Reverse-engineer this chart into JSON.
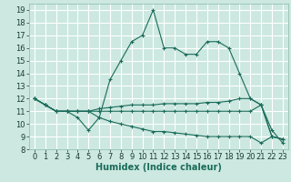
{
  "title": "",
  "xlabel": "Humidex (Indice chaleur)",
  "xlim": [
    -0.5,
    23.5
  ],
  "ylim": [
    8,
    19.5
  ],
  "xticks": [
    0,
    1,
    2,
    3,
    4,
    5,
    6,
    7,
    8,
    9,
    10,
    11,
    12,
    13,
    14,
    15,
    16,
    17,
    18,
    19,
    20,
    21,
    22,
    23
  ],
  "yticks": [
    8,
    9,
    10,
    11,
    12,
    13,
    14,
    15,
    16,
    17,
    18,
    19
  ],
  "bg_color": "#cce8e0",
  "grid_color": "#ffffff",
  "line_color": "#1a6b5a",
  "lines": [
    [
      12.0,
      11.5,
      11.0,
      11.0,
      10.5,
      9.5,
      10.5,
      13.5,
      15.0,
      16.5,
      17.0,
      19.0,
      16.0,
      16.0,
      15.5,
      15.5,
      16.5,
      16.5,
      16.0,
      14.0,
      12.0,
      11.5,
      9.5,
      8.5
    ],
    [
      12.0,
      11.5,
      11.0,
      11.0,
      11.0,
      11.0,
      11.2,
      11.3,
      11.4,
      11.5,
      11.5,
      11.5,
      11.6,
      11.6,
      11.6,
      11.6,
      11.7,
      11.7,
      11.8,
      12.0,
      12.0,
      11.5,
      9.0,
      8.8
    ],
    [
      12.0,
      11.5,
      11.0,
      11.0,
      11.0,
      11.0,
      11.0,
      11.0,
      11.0,
      11.0,
      11.0,
      11.0,
      11.0,
      11.0,
      11.0,
      11.0,
      11.0,
      11.0,
      11.0,
      11.0,
      11.0,
      11.5,
      9.0,
      8.8
    ],
    [
      12.0,
      11.5,
      11.0,
      11.0,
      11.0,
      11.0,
      10.5,
      10.2,
      10.0,
      9.8,
      9.6,
      9.4,
      9.4,
      9.3,
      9.2,
      9.1,
      9.0,
      9.0,
      9.0,
      9.0,
      9.0,
      8.5,
      9.0,
      8.8
    ]
  ],
  "tick_fontsize": 6,
  "xlabel_fontsize": 7
}
